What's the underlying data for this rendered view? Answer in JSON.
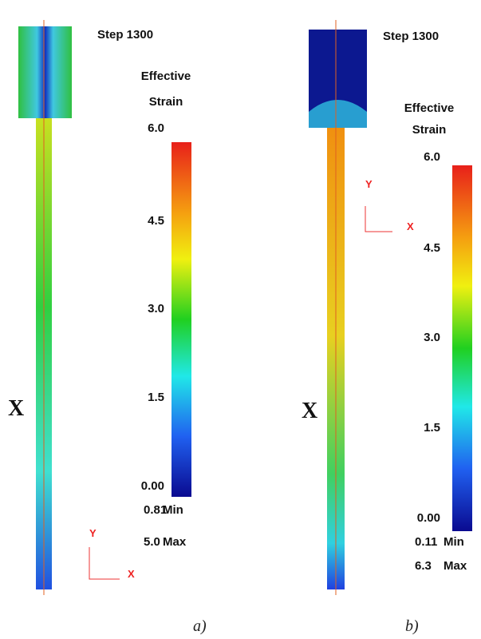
{
  "panels": [
    {
      "title": "Step 1300",
      "legend_title": [
        "Effective",
        "Strain"
      ],
      "ticks": [
        "6.0",
        "4.5",
        "3.0",
        "1.5",
        "0.00"
      ],
      "min": {
        "value": "0.81",
        "label": "Min"
      },
      "max": {
        "value": "5.0",
        "label": "Max"
      },
      "axes": {
        "y": "Y",
        "x": "X"
      },
      "section": "X",
      "caption": "a)"
    },
    {
      "title": "Step 1300",
      "legend_title": [
        "Effective",
        "Strain"
      ],
      "ticks": [
        "6.0",
        "4.5",
        "3.0",
        "1.5",
        "0.00"
      ],
      "min": {
        "value": "0.11",
        "label": "Min"
      },
      "max": {
        "value": "6.3",
        "label": "Max"
      },
      "axes": {
        "y": "Y",
        "x": "X"
      },
      "section": "X",
      "caption": "b)"
    }
  ]
}
